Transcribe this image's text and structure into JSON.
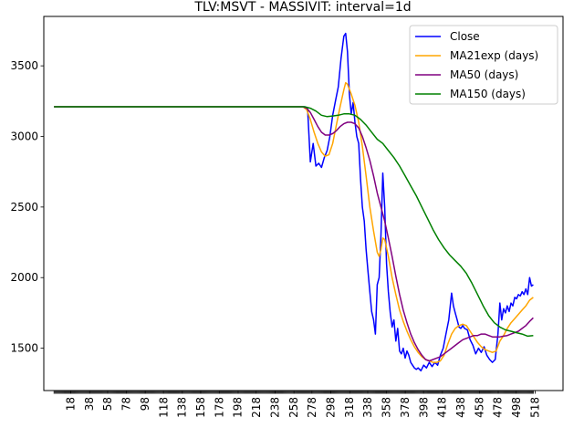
{
  "chart_data": {
    "type": "line",
    "title": "TLV:MSVT - MASSIVIT: interval=1d",
    "xlabel": "",
    "ylabel": "",
    "xlim": [
      -11,
      548
    ],
    "ylim": [
      1200,
      3850
    ],
    "x_ticks": [
      18,
      38,
      58,
      78,
      98,
      118,
      138,
      158,
      178,
      198,
      218,
      238,
      258,
      278,
      298,
      318,
      338,
      358,
      378,
      398,
      418,
      438,
      458,
      478,
      498,
      518
    ],
    "y_ticks": [
      1500,
      2000,
      2500,
      3000,
      3500
    ],
    "legend": {
      "placement": "top-right"
    },
    "grid": false,
    "series": [
      {
        "name": "Close",
        "color": "#0000ff",
        "points": [
          [
            0,
            3210
          ],
          [
            270,
            3210
          ],
          [
            273,
            3195
          ],
          [
            276,
            2820
          ],
          [
            279,
            2950
          ],
          [
            282,
            2790
          ],
          [
            285,
            2810
          ],
          [
            288,
            2780
          ],
          [
            291,
            2850
          ],
          [
            294,
            2900
          ],
          [
            297,
            3000
          ],
          [
            300,
            3150
          ],
          [
            303,
            3250
          ],
          [
            306,
            3350
          ],
          [
            309,
            3550
          ],
          [
            312,
            3710
          ],
          [
            314,
            3730
          ],
          [
            316,
            3600
          ],
          [
            318,
            3300
          ],
          [
            320,
            3160
          ],
          [
            322,
            3240
          ],
          [
            324,
            3100
          ],
          [
            326,
            3000
          ],
          [
            328,
            2950
          ],
          [
            330,
            2700
          ],
          [
            332,
            2500
          ],
          [
            334,
            2400
          ],
          [
            336,
            2200
          ],
          [
            338,
            2050
          ],
          [
            340,
            1900
          ],
          [
            342,
            1760
          ],
          [
            344,
            1700
          ],
          [
            346,
            1600
          ],
          [
            348,
            1950
          ],
          [
            350,
            2000
          ],
          [
            352,
            2300
          ],
          [
            354,
            2740
          ],
          [
            356,
            2500
          ],
          [
            358,
            2100
          ],
          [
            360,
            1900
          ],
          [
            362,
            1750
          ],
          [
            364,
            1650
          ],
          [
            366,
            1700
          ],
          [
            368,
            1550
          ],
          [
            370,
            1640
          ],
          [
            372,
            1480
          ],
          [
            374,
            1460
          ],
          [
            376,
            1500
          ],
          [
            378,
            1430
          ],
          [
            380,
            1480
          ],
          [
            382,
            1450
          ],
          [
            384,
            1400
          ],
          [
            386,
            1380
          ],
          [
            388,
            1360
          ],
          [
            390,
            1350
          ],
          [
            392,
            1360
          ],
          [
            395,
            1340
          ],
          [
            398,
            1380
          ],
          [
            401,
            1360
          ],
          [
            404,
            1400
          ],
          [
            407,
            1370
          ],
          [
            410,
            1400
          ],
          [
            413,
            1380
          ],
          [
            416,
            1450
          ],
          [
            419,
            1500
          ],
          [
            422,
            1600
          ],
          [
            425,
            1700
          ],
          [
            428,
            1890
          ],
          [
            430,
            1800
          ],
          [
            432,
            1750
          ],
          [
            434,
            1700
          ],
          [
            436,
            1650
          ],
          [
            438,
            1640
          ],
          [
            440,
            1660
          ],
          [
            442,
            1640
          ],
          [
            445,
            1630
          ],
          [
            448,
            1560
          ],
          [
            451,
            1520
          ],
          [
            454,
            1460
          ],
          [
            457,
            1500
          ],
          [
            460,
            1470
          ],
          [
            463,
            1510
          ],
          [
            466,
            1450
          ],
          [
            469,
            1420
          ],
          [
            472,
            1400
          ],
          [
            475,
            1420
          ],
          [
            478,
            1600
          ],
          [
            480,
            1820
          ],
          [
            482,
            1700
          ],
          [
            484,
            1780
          ],
          [
            486,
            1750
          ],
          [
            488,
            1800
          ],
          [
            490,
            1760
          ],
          [
            492,
            1820
          ],
          [
            494,
            1800
          ],
          [
            496,
            1860
          ],
          [
            498,
            1850
          ],
          [
            500,
            1880
          ],
          [
            502,
            1870
          ],
          [
            504,
            1900
          ],
          [
            506,
            1880
          ],
          [
            508,
            1920
          ],
          [
            510,
            1880
          ],
          [
            512,
            2000
          ],
          [
            514,
            1940
          ],
          [
            516,
            1950
          ]
        ]
      },
      {
        "name": "MA21exp (days)",
        "color": "#ffa500",
        "points": [
          [
            0,
            3210
          ],
          [
            268,
            3210
          ],
          [
            272,
            3190
          ],
          [
            276,
            3120
          ],
          [
            280,
            3030
          ],
          [
            284,
            2950
          ],
          [
            288,
            2890
          ],
          [
            292,
            2860
          ],
          [
            296,
            2870
          ],
          [
            300,
            2950
          ],
          [
            304,
            3080
          ],
          [
            308,
            3210
          ],
          [
            312,
            3330
          ],
          [
            314,
            3380
          ],
          [
            316,
            3370
          ],
          [
            320,
            3300
          ],
          [
            324,
            3220
          ],
          [
            328,
            3100
          ],
          [
            332,
            2930
          ],
          [
            336,
            2720
          ],
          [
            340,
            2500
          ],
          [
            344,
            2330
          ],
          [
            348,
            2180
          ],
          [
            350,
            2150
          ],
          [
            352,
            2200
          ],
          [
            354,
            2280
          ],
          [
            356,
            2270
          ],
          [
            360,
            2150
          ],
          [
            364,
            2000
          ],
          [
            368,
            1880
          ],
          [
            372,
            1770
          ],
          [
            376,
            1690
          ],
          [
            380,
            1620
          ],
          [
            384,
            1560
          ],
          [
            388,
            1510
          ],
          [
            392,
            1470
          ],
          [
            396,
            1440
          ],
          [
            400,
            1420
          ],
          [
            404,
            1410
          ],
          [
            408,
            1400
          ],
          [
            412,
            1400
          ],
          [
            416,
            1410
          ],
          [
            420,
            1450
          ],
          [
            424,
            1530
          ],
          [
            428,
            1600
          ],
          [
            432,
            1640
          ],
          [
            436,
            1660
          ],
          [
            440,
            1670
          ],
          [
            444,
            1660
          ],
          [
            448,
            1620
          ],
          [
            452,
            1580
          ],
          [
            456,
            1540
          ],
          [
            460,
            1510
          ],
          [
            464,
            1490
          ],
          [
            468,
            1480
          ],
          [
            472,
            1470
          ],
          [
            476,
            1480
          ],
          [
            480,
            1550
          ],
          [
            484,
            1590
          ],
          [
            488,
            1640
          ],
          [
            492,
            1680
          ],
          [
            496,
            1710
          ],
          [
            500,
            1740
          ],
          [
            504,
            1770
          ],
          [
            508,
            1800
          ],
          [
            512,
            1840
          ],
          [
            516,
            1860
          ]
        ]
      },
      {
        "name": "MA50 (days)",
        "color": "#800080",
        "points": [
          [
            0,
            3210
          ],
          [
            268,
            3210
          ],
          [
            272,
            3200
          ],
          [
            276,
            3170
          ],
          [
            280,
            3120
          ],
          [
            284,
            3070
          ],
          [
            288,
            3030
          ],
          [
            292,
            3010
          ],
          [
            296,
            3010
          ],
          [
            300,
            3020
          ],
          [
            304,
            3040
          ],
          [
            308,
            3070
          ],
          [
            312,
            3090
          ],
          [
            316,
            3100
          ],
          [
            320,
            3100
          ],
          [
            324,
            3090
          ],
          [
            328,
            3060
          ],
          [
            332,
            3000
          ],
          [
            336,
            2920
          ],
          [
            340,
            2830
          ],
          [
            344,
            2720
          ],
          [
            348,
            2600
          ],
          [
            352,
            2500
          ],
          [
            356,
            2400
          ],
          [
            360,
            2280
          ],
          [
            364,
            2150
          ],
          [
            368,
            2010
          ],
          [
            372,
            1880
          ],
          [
            376,
            1770
          ],
          [
            380,
            1680
          ],
          [
            384,
            1600
          ],
          [
            388,
            1540
          ],
          [
            392,
            1490
          ],
          [
            396,
            1450
          ],
          [
            400,
            1420
          ],
          [
            404,
            1410
          ],
          [
            408,
            1420
          ],
          [
            412,
            1430
          ],
          [
            416,
            1440
          ],
          [
            420,
            1460
          ],
          [
            424,
            1480
          ],
          [
            428,
            1500
          ],
          [
            432,
            1520
          ],
          [
            436,
            1540
          ],
          [
            440,
            1560
          ],
          [
            444,
            1570
          ],
          [
            448,
            1580
          ],
          [
            452,
            1590
          ],
          [
            456,
            1590
          ],
          [
            460,
            1600
          ],
          [
            464,
            1600
          ],
          [
            468,
            1590
          ],
          [
            472,
            1580
          ],
          [
            476,
            1580
          ],
          [
            480,
            1580
          ],
          [
            484,
            1585
          ],
          [
            488,
            1590
          ],
          [
            492,
            1600
          ],
          [
            496,
            1610
          ],
          [
            500,
            1620
          ],
          [
            504,
            1640
          ],
          [
            508,
            1660
          ],
          [
            512,
            1690
          ],
          [
            516,
            1715
          ]
        ]
      },
      {
        "name": "MA150 (days)",
        "color": "#008000",
        "points": [
          [
            0,
            3210
          ],
          [
            270,
            3210
          ],
          [
            276,
            3200
          ],
          [
            282,
            3180
          ],
          [
            288,
            3150
          ],
          [
            294,
            3140
          ],
          [
            300,
            3145
          ],
          [
            306,
            3150
          ],
          [
            312,
            3160
          ],
          [
            318,
            3160
          ],
          [
            324,
            3150
          ],
          [
            330,
            3120
          ],
          [
            336,
            3080
          ],
          [
            342,
            3030
          ],
          [
            348,
            2980
          ],
          [
            354,
            2950
          ],
          [
            360,
            2900
          ],
          [
            366,
            2850
          ],
          [
            372,
            2790
          ],
          [
            378,
            2720
          ],
          [
            384,
            2650
          ],
          [
            390,
            2580
          ],
          [
            396,
            2500
          ],
          [
            402,
            2420
          ],
          [
            408,
            2340
          ],
          [
            414,
            2270
          ],
          [
            420,
            2210
          ],
          [
            426,
            2160
          ],
          [
            432,
            2120
          ],
          [
            438,
            2080
          ],
          [
            444,
            2030
          ],
          [
            450,
            1960
          ],
          [
            456,
            1880
          ],
          [
            462,
            1800
          ],
          [
            468,
            1730
          ],
          [
            474,
            1680
          ],
          [
            480,
            1650
          ],
          [
            486,
            1630
          ],
          [
            492,
            1620
          ],
          [
            498,
            1610
          ],
          [
            504,
            1600
          ],
          [
            510,
            1585
          ],
          [
            516,
            1590
          ]
        ]
      }
    ]
  }
}
